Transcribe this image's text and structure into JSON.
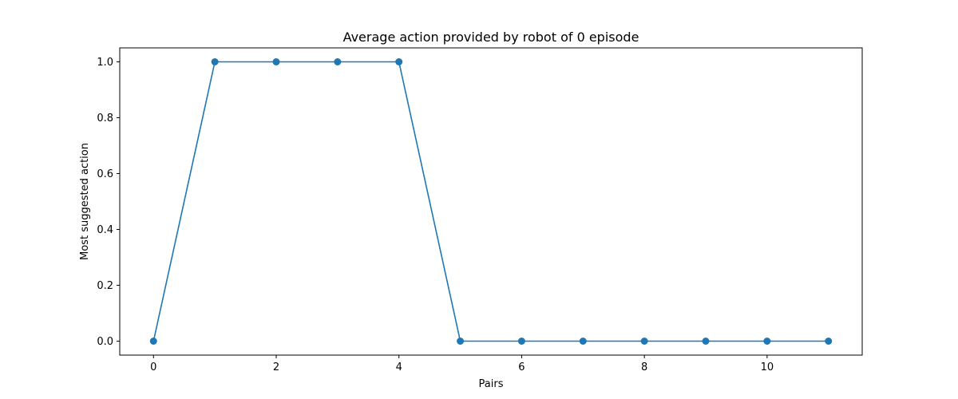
{
  "chart_data": {
    "type": "line",
    "title": "Average action provided by robot of 0 episode",
    "xlabel": "Pairs",
    "ylabel": "Most suggested action",
    "x": [
      0,
      1,
      2,
      3,
      4,
      5,
      6,
      7,
      8,
      9,
      10,
      11
    ],
    "series": [
      {
        "values": [
          0,
          1,
          1,
          1,
          1,
          0,
          0,
          0,
          0,
          0,
          0,
          0
        ],
        "color": "#1f77b4",
        "marker": "circle"
      }
    ],
    "xlim": [
      -0.55,
      11.55
    ],
    "ylim": [
      -0.05,
      1.05
    ],
    "xticks": [
      0,
      2,
      4,
      6,
      8,
      10
    ],
    "xtick_labels": [
      "0",
      "2",
      "4",
      "6",
      "8",
      "10"
    ],
    "yticks": [
      0.0,
      0.2,
      0.4,
      0.6,
      0.8,
      1.0
    ],
    "ytick_labels": [
      "0.0",
      "0.2",
      "0.4",
      "0.6",
      "0.8",
      "1.0"
    ],
    "grid": false,
    "legend": false
  }
}
